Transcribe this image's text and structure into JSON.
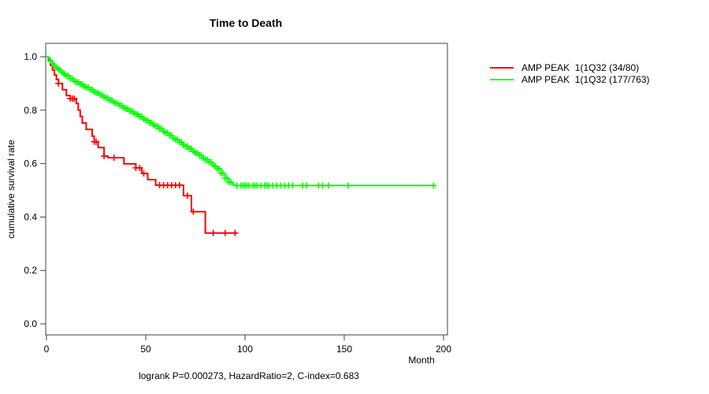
{
  "chart_data": {
    "type": "line",
    "chart_kind": "kaplan-meier-survival-step",
    "title": "Time to Death",
    "xlabel": "Month",
    "ylabel": "cumulative survival rate",
    "annotation": "logrank P=0.000273, HazardRatio=2, C-index=0.683",
    "xlim": [
      0,
      200
    ],
    "ylim": [
      0.0,
      1.0
    ],
    "xticks": [
      0,
      50,
      100,
      150,
      200
    ],
    "ytick_labels": [
      "0.0",
      "0.2",
      "0.4",
      "0.6",
      "0.8",
      "1.0"
    ],
    "grid": false,
    "legend_position": "right-outside",
    "frame_color": "#404040",
    "series": [
      {
        "name": "AMP PEAK  1(1Q32 (34/80)",
        "color": "#ff0000",
        "points": [
          [
            0,
            1.0
          ],
          [
            1,
            0.985
          ],
          [
            2,
            0.968
          ],
          [
            3,
            0.95
          ],
          [
            4,
            0.932
          ],
          [
            5,
            0.915
          ],
          [
            6,
            0.9
          ],
          [
            8,
            0.877
          ],
          [
            10,
            0.855
          ],
          [
            12,
            0.843
          ],
          [
            15,
            0.825
          ],
          [
            16,
            0.8
          ],
          [
            17,
            0.777
          ],
          [
            18,
            0.752
          ],
          [
            20,
            0.728
          ],
          [
            23,
            0.703
          ],
          [
            24,
            0.682
          ],
          [
            26,
            0.66
          ],
          [
            29,
            0.628
          ],
          [
            31,
            0.622
          ],
          [
            39,
            0.599
          ],
          [
            45,
            0.584
          ],
          [
            48,
            0.563
          ],
          [
            51,
            0.54
          ],
          [
            55,
            0.519
          ],
          [
            69,
            0.48
          ],
          [
            73,
            0.42
          ],
          [
            80,
            0.34
          ],
          [
            96,
            0.34
          ]
        ],
        "censor_ticks": [
          6,
          12,
          13,
          14,
          24,
          25,
          29,
          34,
          45,
          47,
          49,
          57,
          59,
          61,
          63,
          65,
          67,
          71,
          74,
          84,
          90,
          95
        ]
      },
      {
        "name": "AMP PEAK  1(1Q32 (177/763)",
        "color": "#00ff00",
        "points": [
          [
            0,
            1.0
          ],
          [
            1,
            0.995
          ],
          [
            2,
            0.985
          ],
          [
            3,
            0.975
          ],
          [
            4,
            0.967
          ],
          [
            5,
            0.96
          ],
          [
            6,
            0.954
          ],
          [
            7,
            0.948
          ],
          [
            8,
            0.941
          ],
          [
            9,
            0.935
          ],
          [
            10,
            0.929
          ],
          [
            12,
            0.918
          ],
          [
            14,
            0.909
          ],
          [
            15,
            0.905
          ],
          [
            17,
            0.897
          ],
          [
            19,
            0.889
          ],
          [
            20,
            0.885
          ],
          [
            22,
            0.877
          ],
          [
            24,
            0.869
          ],
          [
            25,
            0.865
          ],
          [
            27,
            0.857
          ],
          [
            29,
            0.849
          ],
          [
            30,
            0.845
          ],
          [
            32,
            0.837
          ],
          [
            34,
            0.829
          ],
          [
            35,
            0.825
          ],
          [
            37,
            0.817
          ],
          [
            39,
            0.809
          ],
          [
            40,
            0.805
          ],
          [
            42,
            0.797
          ],
          [
            44,
            0.789
          ],
          [
            45,
            0.785
          ],
          [
            47,
            0.776
          ],
          [
            49,
            0.767
          ],
          [
            50,
            0.762
          ],
          [
            52,
            0.753
          ],
          [
            54,
            0.744
          ],
          [
            55,
            0.74
          ],
          [
            57,
            0.73
          ],
          [
            59,
            0.72
          ],
          [
            60,
            0.715
          ],
          [
            62,
            0.705
          ],
          [
            64,
            0.695
          ],
          [
            65,
            0.69
          ],
          [
            67,
            0.68
          ],
          [
            69,
            0.67
          ],
          [
            70,
            0.665
          ],
          [
            72,
            0.655
          ],
          [
            74,
            0.645
          ],
          [
            75,
            0.64
          ],
          [
            77,
            0.63
          ],
          [
            79,
            0.62
          ],
          [
            80,
            0.615
          ],
          [
            82,
            0.605
          ],
          [
            84,
            0.595
          ],
          [
            85,
            0.59
          ],
          [
            86,
            0.58
          ],
          [
            88,
            0.563
          ],
          [
            90,
            0.545
          ],
          [
            92,
            0.53
          ],
          [
            94,
            0.52
          ],
          [
            95,
            0.518
          ],
          [
            196,
            0.518
          ]
        ],
        "censor_ticks": [
          2,
          3,
          4,
          5,
          6,
          7,
          8,
          9,
          10,
          11,
          12,
          13,
          14,
          15,
          16,
          17,
          18,
          19,
          20,
          21,
          22,
          23,
          24,
          25,
          26,
          27,
          28,
          29,
          30,
          31,
          32,
          33,
          34,
          35,
          36,
          37,
          38,
          39,
          40,
          41,
          42,
          43,
          44,
          45,
          46,
          47,
          48,
          49,
          50,
          51,
          52,
          53,
          54,
          55,
          56,
          57,
          58,
          59,
          60,
          61,
          62,
          63,
          64,
          65,
          66,
          67,
          68,
          69,
          70,
          71,
          72,
          73,
          74,
          75,
          76,
          77,
          78,
          79,
          80,
          81,
          82,
          83,
          84,
          85,
          86,
          87,
          88,
          89,
          90,
          91,
          92,
          93,
          96,
          98,
          99,
          100,
          101,
          102,
          104,
          105,
          106,
          108,
          110,
          111,
          112,
          114,
          116,
          118,
          120,
          122,
          124,
          129,
          131,
          137,
          139,
          142,
          152,
          195
        ]
      }
    ]
  }
}
